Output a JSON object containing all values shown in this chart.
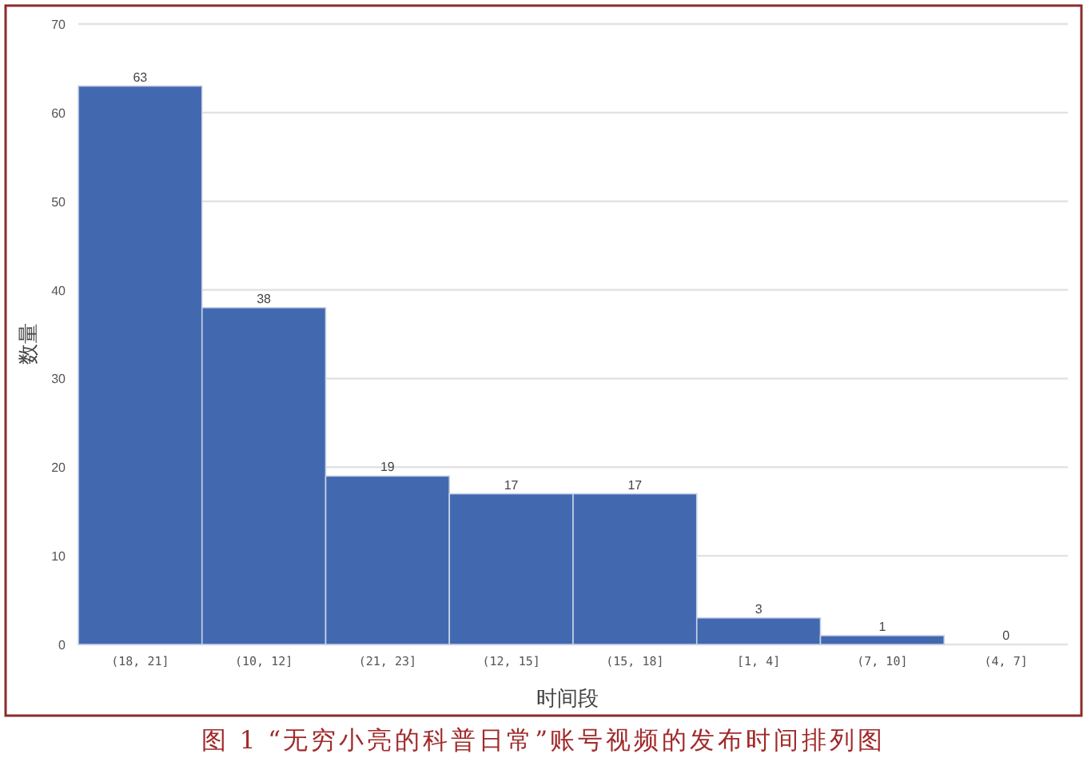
{
  "chart_data": {
    "type": "bar",
    "categories": [
      "(18, 21]",
      "(10, 12]",
      "(21, 23]",
      "(12, 15]",
      "(15, 18]",
      "[1, 4]",
      "(7, 10]",
      "(4, 7]"
    ],
    "values": [
      63,
      38,
      19,
      17,
      17,
      3,
      1,
      0
    ],
    "color": "#4268b0",
    "xlabel": "时间段",
    "ylabel": "数量",
    "ylim": [
      0,
      70
    ],
    "yticks": [
      0,
      10,
      20,
      30,
      40,
      50,
      60,
      70
    ],
    "grid": "y",
    "data_labels": true,
    "annotations": [
      "图 1 “无穷小亮的科普日常”账号视频的发布时间排列图"
    ]
  }
}
